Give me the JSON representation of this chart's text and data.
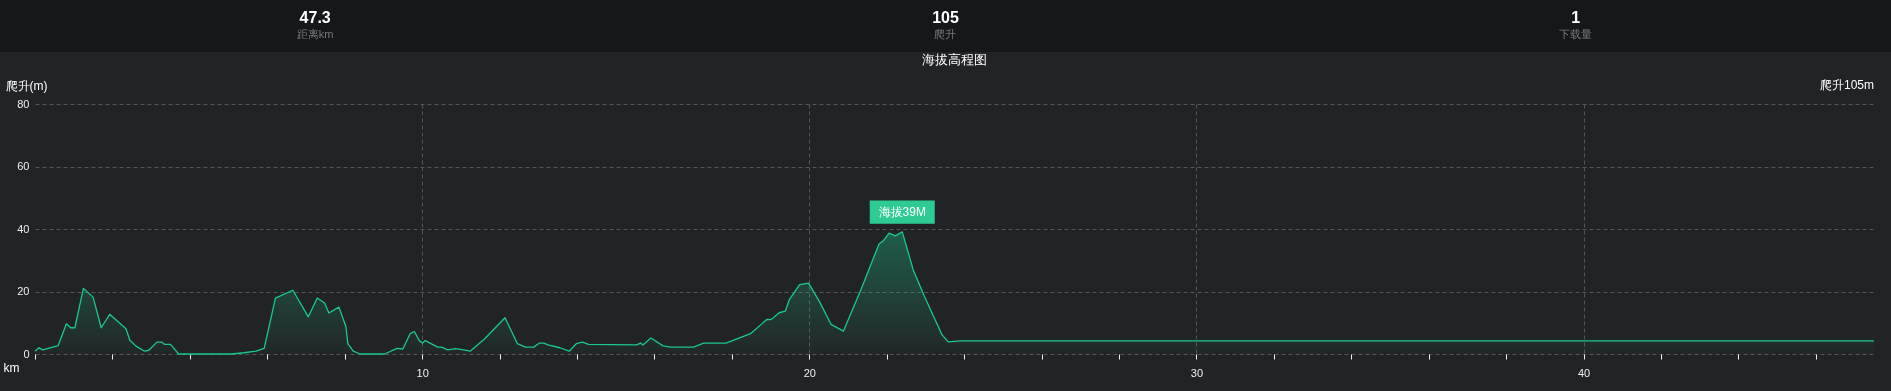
{
  "chart_data": [
    {
      "type": "other",
      "annotations": [
        "47.3",
        "距离km",
        "105",
        "爬升",
        "1",
        "下载量"
      ]
    },
    {
      "type": "area",
      "title": "海拔高程图",
      "ylabel": "爬升(m)",
      "xlabel": "km",
      "color": "#19c98b",
      "grid": true,
      "annotations": [
        "爬升105m",
        {
          "text": "海拔39M",
          "x": 22.4,
          "y": 39
        }
      ],
      "xlim": [
        0,
        47.5
      ],
      "ylim": [
        0,
        80
      ],
      "yticks": [
        0,
        20,
        40,
        60,
        80
      ],
      "xticks": [
        {
          "value": 0,
          "label": null
        },
        {
          "value": 2,
          "label": null
        },
        {
          "value": 4,
          "label": null
        },
        {
          "value": 6,
          "label": null
        },
        {
          "value": 8,
          "label": null
        },
        10,
        {
          "value": 12,
          "label": null
        },
        {
          "value": 14,
          "label": null
        },
        {
          "value": 16,
          "label": null
        },
        {
          "value": 18,
          "label": null
        },
        20,
        {
          "value": 22,
          "label": null
        },
        {
          "value": 24,
          "label": null
        },
        {
          "value": 26,
          "label": null
        },
        {
          "value": 28,
          "label": null
        },
        30,
        {
          "value": 32,
          "label": null
        },
        {
          "value": 34,
          "label": null
        },
        {
          "value": 36,
          "label": null
        },
        {
          "value": 38,
          "label": null
        },
        40,
        {
          "value": 42,
          "label": null
        },
        {
          "value": 44,
          "label": null
        },
        {
          "value": 46,
          "label": null
        }
      ],
      "x": [
        0,
        0.1,
        0.2,
        0.6,
        0.81,
        0.92,
        1.03,
        1.25,
        1.5,
        1.71,
        1.93,
        2.35,
        2.45,
        2.6,
        2.83,
        2.94,
        3.15,
        3.28,
        3.34,
        3.5,
        3.71,
        5.08,
        5.4,
        5.71,
        5.92,
        6.21,
        6.66,
        7.06,
        7.29,
        7.48,
        7.59,
        7.85,
        8.03,
        8.08,
        8.22,
        8.4,
        9.03,
        9.35,
        9.5,
        9.69,
        9.8,
        9.93,
        10.01,
        10.08,
        10.4,
        10.5,
        10.66,
        10.87,
        11.03,
        11.24,
        11.61,
        12.14,
        12.46,
        12.67,
        12.88,
        13.03,
        13.14,
        13.25,
        13.56,
        13.8,
        13.98,
        14.14,
        14.3,
        15.54,
        15.64,
        15.7,
        15.91,
        16.22,
        16.43,
        17.01,
        17.27,
        17.85,
        18.48,
        18.91,
        19.01,
        19.22,
        19.38,
        19.48,
        19.75,
        19.98,
        20.27,
        20.56,
        20.88,
        21.33,
        21.8,
        21.91,
        22.06,
        22.22,
        22.4,
        22.69,
        22.96,
        23.43,
        23.59,
        23.91,
        47.5
      ],
      "values": [
        0.9,
        2,
        1.3,
        2.7,
        9.7,
        8.4,
        8.4,
        21,
        18.2,
        8.4,
        12.7,
        8.1,
        4.4,
        2.6,
        0.9,
        1.2,
        3.8,
        3.8,
        3.1,
        3.1,
        0,
        0,
        0.4,
        0.9,
        1.8,
        17.9,
        20.4,
        11.9,
        17.9,
        16.3,
        13.1,
        15,
        8.8,
        3.3,
        0.9,
        0,
        0,
        1.8,
        1.6,
        6.5,
        7.2,
        4.2,
        3.5,
        4.3,
        2.2,
        2.2,
        1.3,
        1.7,
        1.4,
        0.9,
        4.8,
        11.6,
        3.3,
        2.2,
        2.2,
        3.5,
        3.5,
        2.9,
        2,
        0.9,
        3.3,
        3.8,
        3.1,
        2.9,
        3.5,
        2.9,
        5.1,
        2.6,
        2.2,
        2.2,
        3.5,
        3.5,
        6.5,
        11.1,
        11,
        13.2,
        13.7,
        17.3,
        22.2,
        22.7,
        16.6,
        9.5,
        7.3,
        20.5,
        35.2,
        36.2,
        38.7,
        37.8,
        39.1,
        26.7,
        18.8,
        6.1,
        3.9,
        4.2,
        4.2
      ]
    }
  ]
}
